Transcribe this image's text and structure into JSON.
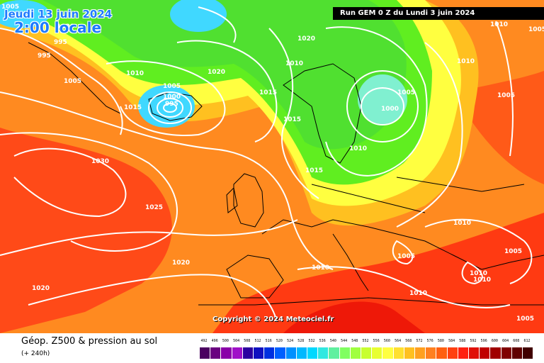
{
  "map": {
    "date_text": "Jeudi 13 juin 2024",
    "time_text": "2:00 locale",
    "run_banner": "Run GEM 0 Z du Lundi 3 juin 2024",
    "copyright": "Copyright © 2024 Meteociel.fr",
    "isobar_labels": [
      "1005",
      "995",
      "995",
      "1010",
      "1005",
      "1015",
      "1000",
      "995",
      "1005",
      "1020",
      "1020",
      "1015",
      "1010",
      "1015",
      "1005",
      "1000",
      "1010",
      "1005",
      "1010",
      "1030",
      "1025",
      "1015",
      "1020",
      "1010",
      "1020",
      "1010",
      "1010",
      "1010",
      "1005",
      "1005",
      "1010",
      "1010",
      "1005",
      "1020",
      "1005"
    ],
    "colors": {
      "ocean_warm": "#ff5a1a",
      "orange": "#ff9020",
      "yellow": "#ffff40",
      "green": "#60ee20",
      "cyan": "#40d8ff",
      "red": "#ff2010",
      "contour": "#ffffff",
      "coast": "#000000"
    }
  },
  "panel": {
    "title": "Géop. Z500 & pression au sol",
    "subtitle": "(+ 240h)"
  },
  "legend": {
    "labels": [
      "492",
      "496",
      "500",
      "504",
      "508",
      "512",
      "516",
      "520",
      "524",
      "528",
      "532",
      "536",
      "540",
      "544",
      "548",
      "552",
      "556",
      "560",
      "564",
      "568",
      "572",
      "576",
      "580",
      "584",
      "588",
      "592",
      "596",
      "600",
      "604",
      "608",
      "612"
    ],
    "colors": [
      "#4b0060",
      "#6a0080",
      "#8a00a8",
      "#a010c8",
      "#2c00a0",
      "#1010c0",
      "#0030e0",
      "#0060ff",
      "#0090ff",
      "#00b8ff",
      "#00d8ff",
      "#30e8e0",
      "#60f0a0",
      "#80ff60",
      "#a0ff40",
      "#c8ff30",
      "#e8ff30",
      "#ffff40",
      "#ffe030",
      "#ffc020",
      "#ffa020",
      "#ff8020",
      "#ff6010",
      "#ff4010",
      "#ff2010",
      "#e01008",
      "#c00000",
      "#a00000",
      "#800000",
      "#600000",
      "#400000"
    ]
  }
}
